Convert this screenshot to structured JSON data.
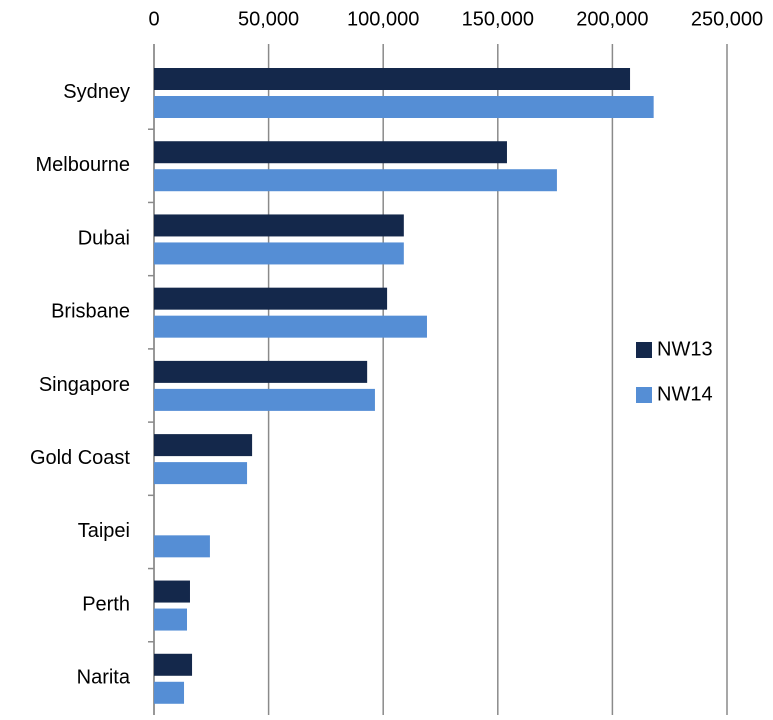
{
  "chart_data": {
    "type": "bar",
    "orientation": "horizontal",
    "categories": [
      "Sydney",
      "Melbourne",
      "Dubai",
      "Brisbane",
      "Singapore",
      "Gold Coast",
      "Taipei",
      "Perth",
      "Narita"
    ],
    "series": [
      {
        "name": "NW13",
        "color": "#14284b",
        "values": [
          207700,
          154000,
          109000,
          101700,
          93000,
          42800,
          null,
          15700,
          16600
        ]
      },
      {
        "name": "NW14",
        "color": "#558ed5",
        "values": [
          218000,
          175800,
          109000,
          119100,
          96400,
          40600,
          24400,
          14400,
          13100
        ]
      }
    ],
    "xlim": [
      0,
      250000
    ],
    "xticks": [
      0,
      {
        "value": 50000,
        "label": "50,000"
      },
      {
        "value": 100000,
        "label": "100,000"
      },
      {
        "value": 150000,
        "label": "150,000"
      },
      {
        "value": 200000,
        "label": "200,000"
      },
      {
        "value": 250000,
        "label": "250,000"
      }
    ],
    "grid": true,
    "legend": "right"
  }
}
